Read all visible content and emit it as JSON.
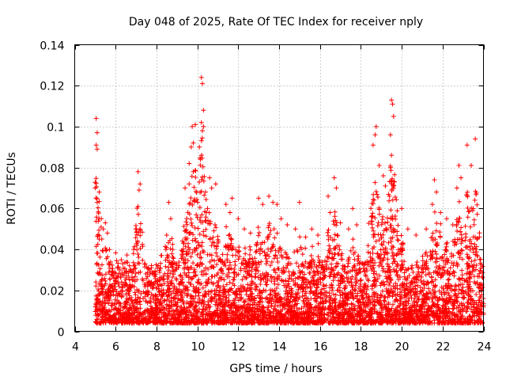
{
  "chart_data": {
    "type": "scatter",
    "title": "Day 048 of 2025, Rate Of TEC Index for receiver nply",
    "xlabel": "GPS time / hours",
    "ylabel": "ROTI / TECUs",
    "xlim": [
      4,
      24
    ],
    "ylim": [
      0,
      0.14
    ],
    "xticks": [
      4,
      6,
      8,
      10,
      12,
      14,
      16,
      18,
      20,
      22,
      24
    ],
    "yticks": [
      0,
      0.02,
      0.04,
      0.06,
      0.08,
      0.1,
      0.12,
      0.14
    ],
    "ytick_labels": [
      "0",
      "0.02",
      "0.04",
      "0.06",
      "0.08",
      "0.1",
      "0.12",
      "0.14"
    ],
    "grid": true,
    "marker": "+",
    "color": "#ff0000",
    "series": [
      {
        "name": "ROTI",
        "points": [
          [
            5.05,
            0.104
          ],
          [
            5.1,
            0.097
          ],
          [
            5.05,
            0.091
          ],
          [
            5.1,
            0.089
          ],
          [
            5.0,
            0.07
          ],
          [
            5.2,
            0.068
          ],
          [
            5.1,
            0.063
          ],
          [
            5.3,
            0.055
          ],
          [
            5.4,
            0.05
          ],
          [
            5.5,
            0.053
          ],
          [
            5.6,
            0.048
          ],
          [
            5.2,
            0.045
          ],
          [
            5.7,
            0.04
          ],
          [
            7.1,
            0.078
          ],
          [
            7.2,
            0.072
          ],
          [
            7.15,
            0.069
          ],
          [
            7.1,
            0.061
          ],
          [
            7.2,
            0.05
          ],
          [
            8.6,
            0.063
          ],
          [
            8.7,
            0.055
          ],
          [
            8.5,
            0.047
          ],
          [
            8.8,
            0.04
          ],
          [
            9.6,
            0.082
          ],
          [
            9.7,
            0.09
          ],
          [
            9.8,
            0.092
          ],
          [
            9.75,
            0.1
          ],
          [
            9.9,
            0.101
          ],
          [
            9.8,
            0.078
          ],
          [
            9.6,
            0.072
          ],
          [
            9.4,
            0.07
          ],
          [
            10.2,
            0.124
          ],
          [
            10.25,
            0.121
          ],
          [
            10.3,
            0.108
          ],
          [
            10.2,
            0.102
          ],
          [
            10.3,
            0.1
          ],
          [
            10.25,
            0.098
          ],
          [
            10.1,
            0.09
          ],
          [
            10.6,
            0.075
          ],
          [
            10.9,
            0.072
          ],
          [
            10.4,
            0.068
          ],
          [
            10.7,
            0.07
          ],
          [
            10.5,
            0.06
          ],
          [
            11.4,
            0.062
          ],
          [
            11.7,
            0.065
          ],
          [
            11.6,
            0.058
          ],
          [
            12.0,
            0.055
          ],
          [
            12.3,
            0.05
          ],
          [
            12.6,
            0.048
          ],
          [
            13.0,
            0.065
          ],
          [
            13.2,
            0.062
          ],
          [
            13.5,
            0.066
          ],
          [
            13.7,
            0.063
          ],
          [
            13.9,
            0.062
          ],
          [
            14.1,
            0.055
          ],
          [
            14.4,
            0.052
          ],
          [
            15.0,
            0.063
          ],
          [
            14.8,
            0.05
          ],
          [
            15.3,
            0.046
          ],
          [
            15.6,
            0.05
          ],
          [
            15.9,
            0.047
          ],
          [
            16.4,
            0.066
          ],
          [
            16.7,
            0.075
          ],
          [
            16.8,
            0.07
          ],
          [
            16.5,
            0.058
          ],
          [
            17.0,
            0.053
          ],
          [
            17.4,
            0.05
          ],
          [
            17.8,
            0.052
          ],
          [
            17.6,
            0.06
          ],
          [
            18.6,
            0.091
          ],
          [
            18.7,
            0.096
          ],
          [
            18.75,
            0.1
          ],
          [
            18.9,
            0.081
          ],
          [
            19.1,
            0.076
          ],
          [
            19.2,
            0.071
          ],
          [
            19.5,
            0.113
          ],
          [
            19.55,
            0.111
          ],
          [
            19.6,
            0.105
          ],
          [
            19.45,
            0.096
          ],
          [
            19.5,
            0.086
          ],
          [
            19.6,
            0.07
          ],
          [
            19.4,
            0.066
          ],
          [
            20.0,
            0.06
          ],
          [
            20.3,
            0.05
          ],
          [
            20.7,
            0.047
          ],
          [
            21.2,
            0.05
          ],
          [
            21.6,
            0.074
          ],
          [
            21.7,
            0.068
          ],
          [
            21.5,
            0.062
          ],
          [
            21.9,
            0.058
          ],
          [
            22.2,
            0.055
          ],
          [
            22.5,
            0.052
          ],
          [
            22.8,
            0.081
          ],
          [
            22.9,
            0.075
          ],
          [
            22.7,
            0.07
          ],
          [
            23.2,
            0.091
          ],
          [
            23.4,
            0.081
          ],
          [
            23.6,
            0.094
          ],
          [
            23.5,
            0.06
          ],
          [
            23.8,
            0.046
          ]
        ]
      }
    ]
  }
}
